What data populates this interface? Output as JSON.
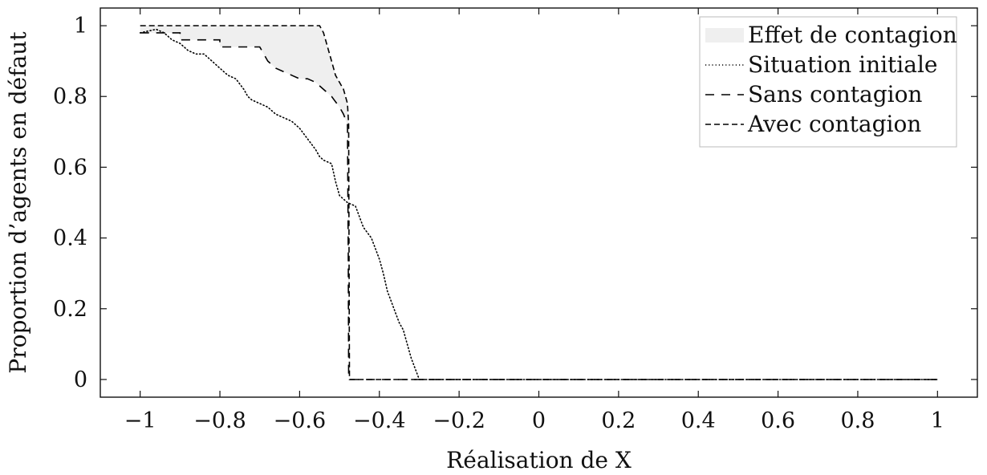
{
  "chart_data": {
    "type": "line",
    "title": "",
    "xlabel": "Réalisation de X",
    "ylabel": "Proportion d’agents en défaut",
    "xlim": [
      -1.1,
      1.1
    ],
    "ylim": [
      -0.05,
      1.05
    ],
    "xticks": [
      -1,
      -0.8,
      -0.6,
      -0.4,
      -0.2,
      0,
      0.2,
      0.4,
      0.6,
      0.8,
      1
    ],
    "xtick_labels": [
      "−1",
      "−0.8",
      "−0.6",
      "−0.4",
      "−0.2",
      "0",
      "0.2",
      "0.4",
      "0.6",
      "0.8",
      "1"
    ],
    "yticks": [
      0,
      0.2,
      0.4,
      0.6,
      0.8,
      1
    ],
    "ytick_labels": [
      "0",
      "0.2",
      "0.4",
      "0.6",
      "0.8",
      "1"
    ],
    "grid": false,
    "legend_position": "top-right",
    "legend": [
      "Effet de contagion",
      "Situation initiale",
      "Sans contagion",
      "Avec contagion"
    ],
    "fill": {
      "name": "Effet de contagion",
      "color": "#efefef",
      "between": [
        "Sans contagion",
        "Avec contagion"
      ]
    },
    "series": [
      {
        "name": "Situation initiale",
        "style": "dotted",
        "color": "#000000",
        "points": [
          [
            -1,
            0.98
          ],
          [
            -0.96,
            0.99
          ],
          [
            -0.94,
            0.98
          ],
          [
            -0.92,
            0.96
          ],
          [
            -0.9,
            0.95
          ],
          [
            -0.88,
            0.93
          ],
          [
            -0.86,
            0.92
          ],
          [
            -0.84,
            0.92
          ],
          [
            -0.82,
            0.9
          ],
          [
            -0.8,
            0.88
          ],
          [
            -0.78,
            0.86
          ],
          [
            -0.76,
            0.85
          ],
          [
            -0.74,
            0.82
          ],
          [
            -0.73,
            0.8
          ],
          [
            -0.72,
            0.79
          ],
          [
            -0.7,
            0.78
          ],
          [
            -0.68,
            0.77
          ],
          [
            -0.66,
            0.75
          ],
          [
            -0.64,
            0.74
          ],
          [
            -0.62,
            0.73
          ],
          [
            -0.6,
            0.71
          ],
          [
            -0.58,
            0.68
          ],
          [
            -0.56,
            0.65
          ],
          [
            -0.55,
            0.63
          ],
          [
            -0.54,
            0.62
          ],
          [
            -0.52,
            0.61
          ],
          [
            -0.51,
            0.56
          ],
          [
            -0.5,
            0.52
          ],
          [
            -0.48,
            0.5
          ],
          [
            -0.46,
            0.49
          ],
          [
            -0.45,
            0.46
          ],
          [
            -0.44,
            0.43
          ],
          [
            -0.42,
            0.4
          ],
          [
            -0.41,
            0.37
          ],
          [
            -0.4,
            0.34
          ],
          [
            -0.39,
            0.3
          ],
          [
            -0.38,
            0.25
          ],
          [
            -0.37,
            0.22
          ],
          [
            -0.36,
            0.19
          ],
          [
            -0.35,
            0.16
          ],
          [
            -0.34,
            0.14
          ],
          [
            -0.33,
            0.1
          ],
          [
            -0.32,
            0.06
          ],
          [
            -0.31,
            0.03
          ],
          [
            -0.3,
            0
          ],
          [
            1,
            0
          ]
        ]
      },
      {
        "name": "Sans contagion",
        "style": "dashed",
        "color": "#000000",
        "points": [
          [
            -1,
            0.98
          ],
          [
            -0.9,
            0.98
          ],
          [
            -0.9,
            0.96
          ],
          [
            -0.8,
            0.96
          ],
          [
            -0.8,
            0.94
          ],
          [
            -0.7,
            0.94
          ],
          [
            -0.68,
            0.9
          ],
          [
            -0.66,
            0.88
          ],
          [
            -0.64,
            0.87
          ],
          [
            -0.62,
            0.86
          ],
          [
            -0.6,
            0.85
          ],
          [
            -0.58,
            0.85
          ],
          [
            -0.56,
            0.84
          ],
          [
            -0.54,
            0.82
          ],
          [
            -0.52,
            0.8
          ],
          [
            -0.5,
            0.77
          ],
          [
            -0.49,
            0.75
          ],
          [
            -0.48,
            0.72
          ],
          [
            -0.478,
            0.35
          ],
          [
            -0.477,
            0
          ],
          [
            1,
            0
          ]
        ]
      },
      {
        "name": "Avec contagion",
        "style": "longdash",
        "color": "#000000",
        "points": [
          [
            -1,
            1
          ],
          [
            -0.55,
            1
          ],
          [
            -0.54,
            0.98
          ],
          [
            -0.53,
            0.94
          ],
          [
            -0.52,
            0.9
          ],
          [
            -0.51,
            0.86
          ],
          [
            -0.5,
            0.84
          ],
          [
            -0.49,
            0.82
          ],
          [
            -0.48,
            0.78
          ],
          [
            -0.477,
            0.72
          ],
          [
            -0.476,
            0.35
          ],
          [
            -0.475,
            0
          ],
          [
            1,
            0
          ]
        ]
      }
    ]
  }
}
